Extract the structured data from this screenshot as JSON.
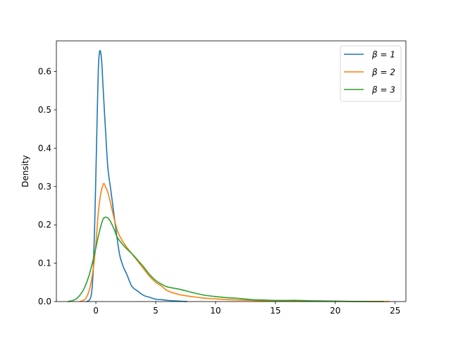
{
  "chart_data": {
    "type": "line",
    "title": "",
    "xlabel": "",
    "ylabel": "Density",
    "xlim": [
      -3.3,
      25.9
    ],
    "ylim": [
      0,
      0.68
    ],
    "xticks": [
      0,
      5,
      10,
      15,
      20,
      25
    ],
    "xtick_labels": [
      "0",
      "5",
      "10",
      "15",
      "20",
      "25"
    ],
    "yticks": [
      0.0,
      0.1,
      0.2,
      0.3,
      0.4,
      0.5,
      0.6
    ],
    "ytick_labels": [
      "0.0",
      "0.1",
      "0.2",
      "0.3",
      "0.4",
      "0.5",
      "0.6"
    ],
    "grid": false,
    "legend_position": "top-right",
    "series": [
      {
        "name": "β = 1",
        "color": "#1f77b4",
        "points": [
          [
            -0.75,
            0.0
          ],
          [
            -0.6,
            0.002
          ],
          [
            -0.5,
            0.006
          ],
          [
            -0.4,
            0.015
          ],
          [
            -0.3,
            0.04
          ],
          [
            -0.2,
            0.1
          ],
          [
            -0.1,
            0.2
          ],
          [
            0.0,
            0.33
          ],
          [
            0.1,
            0.47
          ],
          [
            0.2,
            0.6
          ],
          [
            0.3,
            0.65
          ],
          [
            0.4,
            0.65
          ],
          [
            0.5,
            0.62
          ],
          [
            0.6,
            0.56
          ],
          [
            0.8,
            0.45
          ],
          [
            1.0,
            0.35
          ],
          [
            1.25,
            0.29
          ],
          [
            1.5,
            0.23
          ],
          [
            1.75,
            0.17
          ],
          [
            2.0,
            0.12
          ],
          [
            2.3,
            0.09
          ],
          [
            2.6,
            0.07
          ],
          [
            3.0,
            0.04
          ],
          [
            3.5,
            0.027
          ],
          [
            4.0,
            0.016
          ],
          [
            4.5,
            0.011
          ],
          [
            5.0,
            0.006
          ],
          [
            5.5,
            0.005
          ],
          [
            6.0,
            0.003
          ],
          [
            6.5,
            0.002
          ],
          [
            7.0,
            0.001
          ],
          [
            7.6,
            0.0
          ]
        ]
      },
      {
        "name": "β = 2",
        "color": "#ff7f0e",
        "points": [
          [
            -1.3,
            0.0
          ],
          [
            -1.0,
            0.004
          ],
          [
            -0.8,
            0.01
          ],
          [
            -0.5,
            0.035
          ],
          [
            -0.2,
            0.09
          ],
          [
            0.0,
            0.15
          ],
          [
            0.2,
            0.23
          ],
          [
            0.4,
            0.28
          ],
          [
            0.6,
            0.305
          ],
          [
            0.7,
            0.307
          ],
          [
            0.8,
            0.3
          ],
          [
            1.0,
            0.285
          ],
          [
            1.2,
            0.26
          ],
          [
            1.5,
            0.22
          ],
          [
            1.75,
            0.19
          ],
          [
            2.0,
            0.17
          ],
          [
            2.5,
            0.145
          ],
          [
            3.0,
            0.125
          ],
          [
            3.5,
            0.105
          ],
          [
            4.0,
            0.085
          ],
          [
            4.5,
            0.065
          ],
          [
            5.0,
            0.05
          ],
          [
            5.5,
            0.04
          ],
          [
            6.0,
            0.028
          ],
          [
            7.0,
            0.018
          ],
          [
            8.0,
            0.013
          ],
          [
            9.0,
            0.009
          ],
          [
            10.0,
            0.007
          ],
          [
            11.0,
            0.005
          ],
          [
            12.0,
            0.004
          ],
          [
            13.0,
            0.003
          ],
          [
            14.0,
            0.002
          ],
          [
            15.0,
            0.002
          ],
          [
            16.0,
            0.0015
          ],
          [
            17.0,
            0.001
          ],
          [
            18.0,
            0.001
          ],
          [
            19.0,
            0.0008
          ],
          [
            20.0,
            0.0006
          ],
          [
            21.0,
            0.0004
          ],
          [
            22.0,
            0.0003
          ],
          [
            23.0,
            0.0002
          ],
          [
            24.5,
            0.0
          ]
        ]
      },
      {
        "name": "β = 3",
        "color": "#2ca02c",
        "points": [
          [
            -2.3,
            0.0
          ],
          [
            -2.0,
            0.002
          ],
          [
            -1.7,
            0.006
          ],
          [
            -1.4,
            0.014
          ],
          [
            -1.0,
            0.033
          ],
          [
            -0.6,
            0.065
          ],
          [
            -0.3,
            0.1
          ],
          [
            0.0,
            0.14
          ],
          [
            0.2,
            0.17
          ],
          [
            0.4,
            0.195
          ],
          [
            0.6,
            0.215
          ],
          [
            0.8,
            0.22
          ],
          [
            1.0,
            0.218
          ],
          [
            1.2,
            0.21
          ],
          [
            1.5,
            0.19
          ],
          [
            1.75,
            0.17
          ],
          [
            2.0,
            0.158
          ],
          [
            2.5,
            0.14
          ],
          [
            3.0,
            0.125
          ],
          [
            3.5,
            0.108
          ],
          [
            4.0,
            0.09
          ],
          [
            4.5,
            0.07
          ],
          [
            5.0,
            0.055
          ],
          [
            5.5,
            0.045
          ],
          [
            6.0,
            0.038
          ],
          [
            7.0,
            0.032
          ],
          [
            8.0,
            0.024
          ],
          [
            9.0,
            0.017
          ],
          [
            10.0,
            0.013
          ],
          [
            11.0,
            0.01
          ],
          [
            12.0,
            0.008
          ],
          [
            13.0,
            0.005
          ],
          [
            14.0,
            0.004
          ],
          [
            15.0,
            0.003
          ],
          [
            16.0,
            0.003
          ],
          [
            17.0,
            0.003
          ],
          [
            18.0,
            0.002
          ],
          [
            19.0,
            0.0015
          ],
          [
            20.0,
            0.001
          ],
          [
            21.0,
            0.0006
          ],
          [
            22.0,
            0.0003
          ],
          [
            23.0,
            0.0
          ],
          [
            24.0,
            0.0
          ]
        ]
      }
    ]
  }
}
